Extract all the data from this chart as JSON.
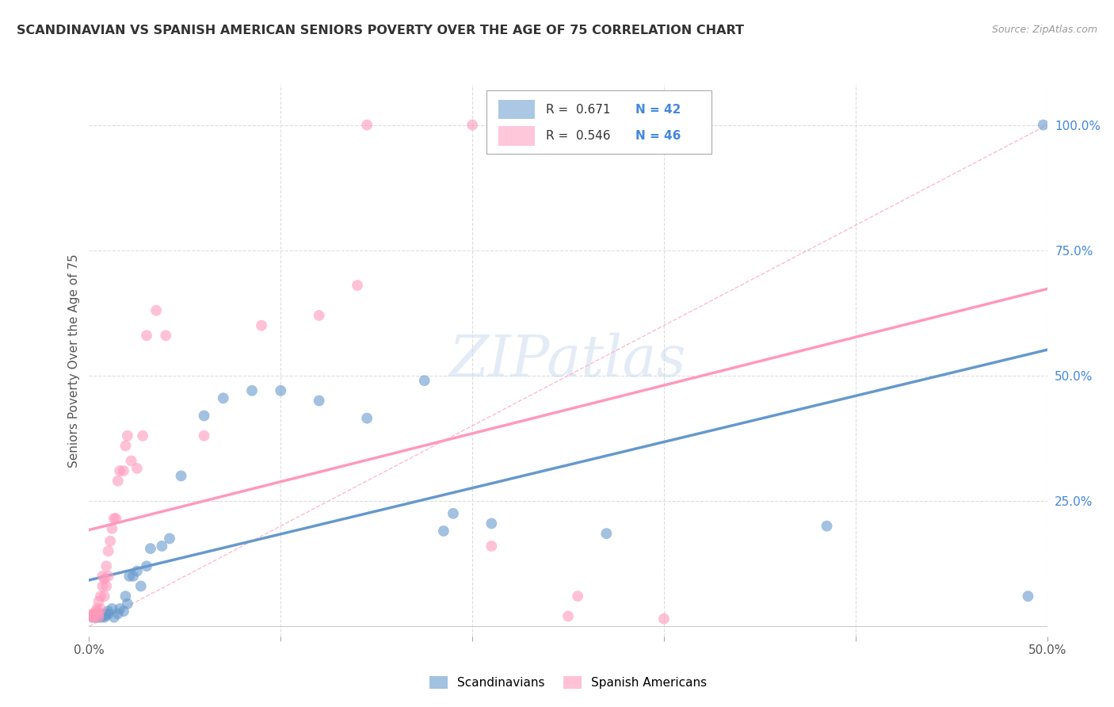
{
  "title": "SCANDINAVIAN VS SPANISH AMERICAN SENIORS POVERTY OVER THE AGE OF 75 CORRELATION CHART",
  "source": "Source: ZipAtlas.com",
  "ylabel": "Seniors Poverty Over the Age of 75",
  "xlim": [
    0,
    0.5
  ],
  "ylim": [
    -0.02,
    1.08
  ],
  "scandinavian_color": "#6699cc",
  "spanish_color": "#ff99bb",
  "legend_R_scand": "R =  0.671",
  "legend_N_scand": "N = 42",
  "legend_R_span": "R =  0.546",
  "legend_N_span": "N = 46",
  "legend_scandinavian_label": "Scandinavians",
  "legend_spanish_label": "Spanish Americans",
  "watermark": "ZIPatlas",
  "scand_x": [
    0.002,
    0.003,
    0.004,
    0.005,
    0.005,
    0.006,
    0.007,
    0.008,
    0.008,
    0.009,
    0.01,
    0.01,
    0.012,
    0.013,
    0.015,
    0.016,
    0.018,
    0.019,
    0.02,
    0.021,
    0.023,
    0.025,
    0.027,
    0.03,
    0.032,
    0.038,
    0.042,
    0.048,
    0.06,
    0.07,
    0.085,
    0.1,
    0.12,
    0.145,
    0.175,
    0.185,
    0.19,
    0.21,
    0.27,
    0.385,
    0.49,
    0.498
  ],
  "scand_y": [
    0.018,
    0.022,
    0.018,
    0.02,
    0.025,
    0.018,
    0.02,
    0.018,
    0.025,
    0.022,
    0.025,
    0.03,
    0.035,
    0.018,
    0.025,
    0.035,
    0.03,
    0.06,
    0.045,
    0.1,
    0.1,
    0.11,
    0.08,
    0.12,
    0.155,
    0.16,
    0.175,
    0.3,
    0.42,
    0.455,
    0.47,
    0.47,
    0.45,
    0.415,
    0.49,
    0.19,
    0.225,
    0.205,
    0.185,
    0.2,
    0.06,
    1.0
  ],
  "span_x": [
    0.001,
    0.001,
    0.002,
    0.002,
    0.003,
    0.003,
    0.004,
    0.004,
    0.005,
    0.005,
    0.005,
    0.006,
    0.006,
    0.007,
    0.007,
    0.008,
    0.008,
    0.009,
    0.009,
    0.01,
    0.01,
    0.011,
    0.012,
    0.013,
    0.014,
    0.015,
    0.016,
    0.018,
    0.019,
    0.02,
    0.022,
    0.025,
    0.028,
    0.03,
    0.035,
    0.04,
    0.06,
    0.09,
    0.12,
    0.14,
    0.145,
    0.2,
    0.21,
    0.25,
    0.255,
    0.3
  ],
  "span_y": [
    0.018,
    0.022,
    0.02,
    0.025,
    0.018,
    0.025,
    0.03,
    0.035,
    0.018,
    0.025,
    0.05,
    0.035,
    0.06,
    0.08,
    0.1,
    0.06,
    0.095,
    0.08,
    0.12,
    0.1,
    0.15,
    0.17,
    0.195,
    0.215,
    0.215,
    0.29,
    0.31,
    0.31,
    0.36,
    0.38,
    0.33,
    0.315,
    0.38,
    0.58,
    0.63,
    0.58,
    0.38,
    0.6,
    0.62,
    0.68,
    1.0,
    1.0,
    0.16,
    0.02,
    0.06,
    0.015
  ]
}
